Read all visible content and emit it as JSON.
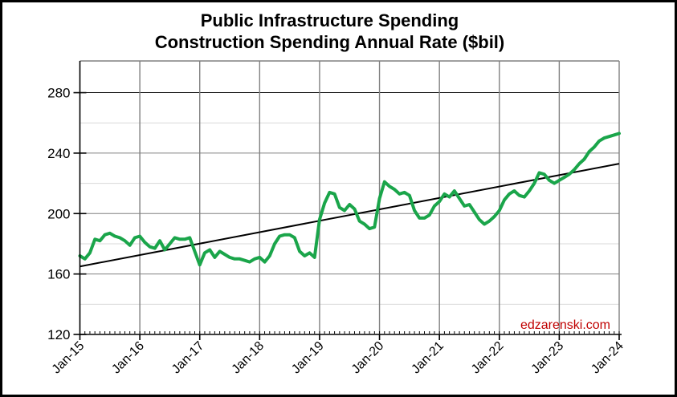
{
  "title": {
    "line1": "Public Infrastructure Spending",
    "line2": "Construction Spending Annual Rate ($bil)"
  },
  "watermark": {
    "text": "edzarenski.com",
    "color": "#c00000"
  },
  "chart_data": {
    "type": "line",
    "title": "Public Infrastructure Spending — Construction Spending Annual Rate ($bil)",
    "xlabel": "",
    "ylabel": "",
    "ylim": [
      120,
      300
    ],
    "y_ticks": [
      120,
      160,
      200,
      240,
      280
    ],
    "y_minor_ticks": [
      140,
      180,
      220,
      260
    ],
    "x_tick_labels": [
      "Jan-15",
      "Jan-16",
      "Jan-17",
      "Jan-18",
      "Jan-19",
      "Jan-20",
      "Jan-21",
      "Jan-22",
      "Jan-23",
      "Jan-24"
    ],
    "x_minor_tick_interval": "monthly",
    "grid": {
      "vertical_color": "#808080",
      "major_color": "#808080",
      "minor_color": "#d9d9d9",
      "line_280_color": "#000000",
      "frame_color": "#808080",
      "axis_color": "#000000"
    },
    "series": [
      {
        "name": "Construction Spending Annual Rate ($bil)",
        "frequency": "monthly",
        "start": "Jan-15",
        "end": "Jan-24",
        "color": "#1aa54a",
        "width": 4,
        "values": [
          172,
          170,
          174,
          183,
          182,
          186,
          187,
          185,
          184,
          182,
          179,
          184,
          185,
          181,
          178,
          177,
          182,
          176,
          180,
          184,
          183,
          183,
          184,
          175,
          166,
          174,
          176,
          171,
          175,
          173,
          171,
          170,
          170,
          169,
          168,
          170,
          171,
          168,
          172,
          180,
          185,
          186,
          186,
          184,
          175,
          172,
          174,
          171,
          196,
          207,
          214,
          213,
          204,
          202,
          206,
          203,
          195,
          193,
          190,
          191,
          210,
          221,
          218,
          216,
          213,
          214,
          212,
          202,
          197,
          197,
          199,
          205,
          208,
          213,
          211,
          215,
          210,
          205,
          206,
          201,
          196,
          193,
          195,
          198,
          202,
          209,
          213,
          215,
          212,
          211,
          215,
          220,
          227,
          226,
          222,
          220,
          222,
          224,
          226,
          229,
          233,
          236,
          241,
          244,
          248,
          250,
          251,
          252,
          253
        ]
      },
      {
        "name": "Linear trend line",
        "type": "straight-line",
        "color": "#000000",
        "width": 2,
        "start_value": 165,
        "end_value": 233
      }
    ],
    "legend": "none"
  }
}
